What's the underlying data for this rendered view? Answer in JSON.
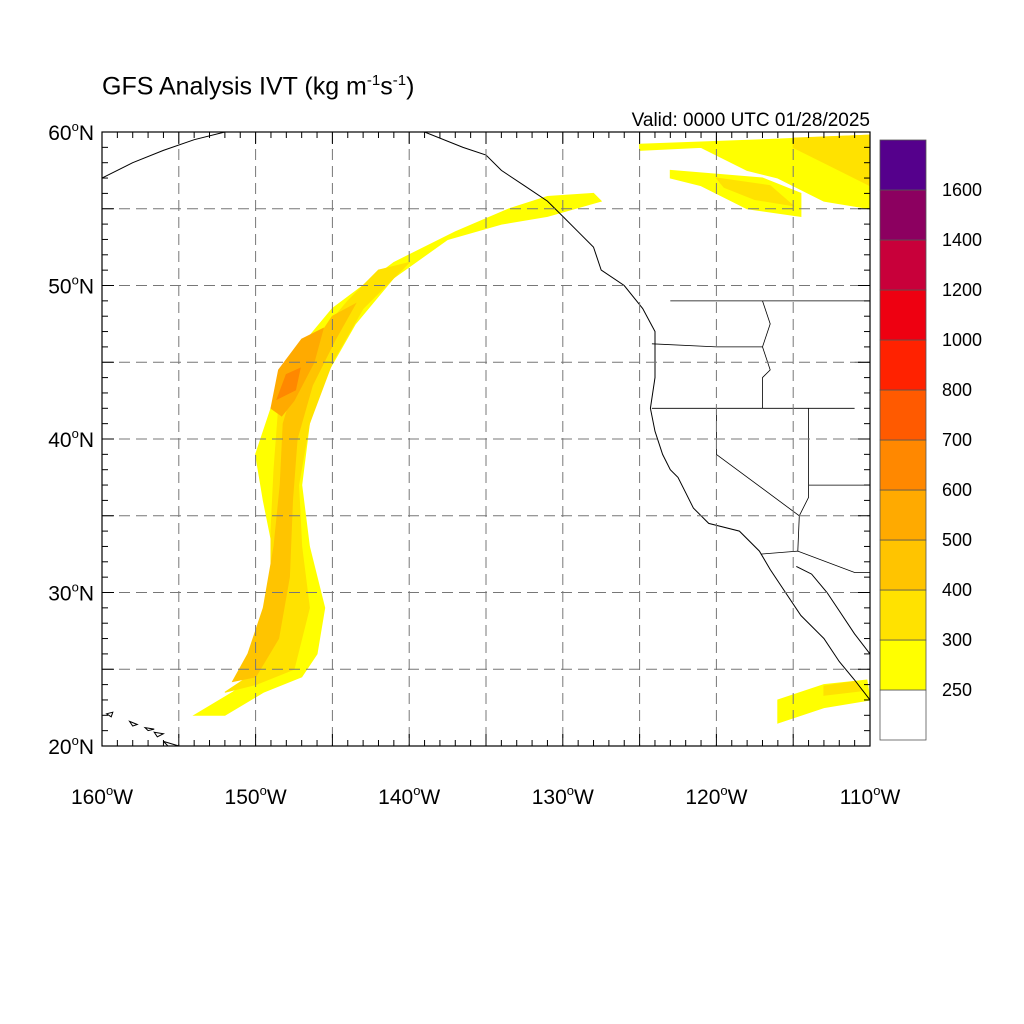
{
  "title": {
    "main": "GFS Analysis IVT (kg m",
    "exp1": "-1",
    "mid": "s",
    "exp2": "-1",
    "end": ")"
  },
  "valid": "Valid: 0000 UTC 01/28/2025",
  "map": {
    "lon_range": [
      -160,
      -110
    ],
    "lat_range": [
      20,
      60
    ],
    "grid": true,
    "lon_ticks": [
      {
        "lon": -160,
        "label": "160",
        "hem": "W"
      },
      {
        "lon": -150,
        "label": "150",
        "hem": "W"
      },
      {
        "lon": -140,
        "label": "140",
        "hem": "W"
      },
      {
        "lon": -130,
        "label": "130",
        "hem": "W"
      },
      {
        "lon": -120,
        "label": "120",
        "hem": "W"
      },
      {
        "lon": -110,
        "label": "110",
        "hem": "W"
      }
    ],
    "lat_ticks": [
      {
        "lat": 60,
        "label": "60",
        "hem": "N"
      },
      {
        "lat": 50,
        "label": "50",
        "hem": "N"
      },
      {
        "lat": 40,
        "label": "40",
        "hem": "N"
      },
      {
        "lat": 30,
        "label": "30",
        "hem": "N"
      },
      {
        "lat": 20,
        "label": "20",
        "hem": "N"
      }
    ]
  },
  "colorbar": {
    "colors": [
      "#ffffff",
      "#ffff00",
      "#ffe200",
      "#ffc400",
      "#ffaa00",
      "#ff8800",
      "#ff5a00",
      "#ff2200",
      "#ee0011",
      "#c8003a",
      "#8c0060",
      "#55008c"
    ],
    "labels": [
      "250",
      "300",
      "400",
      "500",
      "600",
      "700",
      "800",
      "1000",
      "1200",
      "1400",
      "1600"
    ]
  },
  "ivt_features": [
    {
      "name": "atmospheric-river",
      "color": "#ffff00",
      "lonlat": [
        [
          -154,
          22
        ],
        [
          -151.5,
          23.5
        ],
        [
          -150,
          24.5
        ],
        [
          -149,
          27
        ],
        [
          -148.5,
          30
        ],
        [
          -149,
          33.5
        ],
        [
          -149.5,
          36
        ],
        [
          -150,
          39
        ],
        [
          -149,
          42
        ],
        [
          -147.5,
          45.5
        ],
        [
          -145,
          48.5
        ],
        [
          -141,
          51.5
        ],
        [
          -137,
          53.5
        ],
        [
          -133.5,
          55
        ],
        [
          -131,
          55.8
        ],
        [
          -128,
          56
        ],
        [
          -127.5,
          55.5
        ],
        [
          -131,
          54.5
        ],
        [
          -134,
          54
        ],
        [
          -137.5,
          53
        ],
        [
          -141,
          50.5
        ],
        [
          -143.5,
          47.5
        ],
        [
          -145.5,
          44
        ],
        [
          -146.5,
          41
        ],
        [
          -147,
          37
        ],
        [
          -146.5,
          33
        ],
        [
          -145.5,
          29
        ],
        [
          -146,
          26
        ],
        [
          -147,
          24.5
        ],
        [
          -149.5,
          23.5
        ],
        [
          -152,
          22
        ]
      ]
    },
    {
      "name": "atmospheric-river-core",
      "color": "#ffe200",
      "lonlat": [
        [
          -152,
          23.5
        ],
        [
          -150.5,
          24.5
        ],
        [
          -149.5,
          28
        ],
        [
          -149,
          31
        ],
        [
          -149,
          34
        ],
        [
          -148.8,
          38
        ],
        [
          -148.5,
          42
        ],
        [
          -146.5,
          46
        ],
        [
          -144,
          49
        ],
        [
          -142,
          51
        ],
        [
          -140,
          51.5
        ],
        [
          -143,
          48.5
        ],
        [
          -145,
          45
        ],
        [
          -146.5,
          41
        ],
        [
          -147.2,
          37
        ],
        [
          -147,
          33
        ],
        [
          -146.5,
          29
        ],
        [
          -147.5,
          25
        ],
        [
          -150,
          24
        ]
      ]
    },
    {
      "name": "atmospheric-river-max",
      "color": "#ffc400",
      "lonlat": [
        [
          -151.5,
          24.2
        ],
        [
          -150.5,
          26
        ],
        [
          -149.5,
          29
        ],
        [
          -148.8,
          33
        ],
        [
          -148.4,
          37
        ],
        [
          -148.2,
          41
        ],
        [
          -147,
          45
        ],
        [
          -145,
          48
        ],
        [
          -143.5,
          48.8
        ],
        [
          -144.8,
          46.5
        ],
        [
          -146.3,
          43.5
        ],
        [
          -147.3,
          40
        ],
        [
          -147.6,
          36
        ],
        [
          -147.8,
          31
        ],
        [
          -148.5,
          27
        ],
        [
          -150,
          24.5
        ]
      ]
    },
    {
      "name": "atmospheric-river-peak",
      "color": "#ffaa00",
      "lonlat": [
        [
          -149,
          42
        ],
        [
          -148.5,
          44.5
        ],
        [
          -147,
          46.5
        ],
        [
          -145.6,
          47.2
        ],
        [
          -146.2,
          45
        ],
        [
          -147.5,
          42.5
        ],
        [
          -148.3,
          41.5
        ]
      ]
    },
    {
      "name": "atmospheric-river-center",
      "color": "#ff8800",
      "lonlat": [
        [
          -148.6,
          42.6
        ],
        [
          -148,
          44.2
        ],
        [
          -147.1,
          44.6
        ],
        [
          -147.4,
          43.2
        ]
      ]
    },
    {
      "name": "arctic-ivt",
      "color": "#ffff00",
      "lonlat": [
        [
          -125,
          59.2
        ],
        [
          -117,
          59.5
        ],
        [
          -110,
          59.8
        ],
        [
          -110,
          55
        ],
        [
          -113,
          55.5
        ],
        [
          -116,
          57
        ],
        [
          -118,
          57.5
        ],
        [
          -121,
          59
        ],
        [
          -125,
          58.8
        ]
      ]
    },
    {
      "name": "arctic-ivt-core",
      "color": "#ffe200",
      "lonlat": [
        [
          -115,
          59.6
        ],
        [
          -110,
          59.8
        ],
        [
          -110,
          56.5
        ],
        [
          -113,
          58
        ],
        [
          -115,
          59
        ]
      ]
    },
    {
      "name": "arctic-ivt-south",
      "color": "#ffff00",
      "lonlat": [
        [
          -123,
          57.5
        ],
        [
          -117,
          57
        ],
        [
          -114.5,
          56
        ],
        [
          -114.5,
          54.5
        ],
        [
          -118,
          55
        ],
        [
          -121,
          56.5
        ],
        [
          -123,
          57
        ]
      ]
    },
    {
      "name": "arctic-ivt-south-core",
      "color": "#ffe200",
      "lonlat": [
        [
          -120,
          57
        ],
        [
          -116.5,
          56.5
        ],
        [
          -115,
          55.2
        ],
        [
          -117.5,
          55.6
        ],
        [
          -119.5,
          56.4
        ]
      ]
    },
    {
      "name": "subtropical-ivt",
      "color": "#ffff00",
      "lonlat": [
        [
          -116,
          21.5
        ],
        [
          -113,
          22.5
        ],
        [
          -110,
          23
        ],
        [
          -110.2,
          24.3
        ],
        [
          -113,
          24
        ],
        [
          -116,
          23
        ]
      ]
    },
    {
      "name": "subtropical-ivt-core",
      "color": "#ffe200",
      "lonlat": [
        [
          -113,
          23.3
        ],
        [
          -110.5,
          23.6
        ],
        [
          -111,
          24.2
        ],
        [
          -113,
          23.9
        ]
      ]
    }
  ],
  "geography": {
    "coastline_na": [
      [
        -139,
        60
      ],
      [
        -136.5,
        59
      ],
      [
        -135,
        58.5
      ],
      [
        -134,
        57.5
      ],
      [
        -132.5,
        56.5
      ],
      [
        -131,
        55.5
      ],
      [
        -130,
        54.5
      ],
      [
        -129,
        53.5
      ],
      [
        -128,
        52.5
      ],
      [
        -127.5,
        51
      ],
      [
        -126,
        50
      ],
      [
        -124.8,
        48.5
      ],
      [
        -124,
        47
      ],
      [
        -124,
        46
      ],
      [
        -124,
        44
      ],
      [
        -124.3,
        42
      ],
      [
        -124,
        40.5
      ],
      [
        -123.5,
        39
      ],
      [
        -123,
        38
      ],
      [
        -122.5,
        37.5
      ],
      [
        -122,
        36.5
      ],
      [
        -121.5,
        35.5
      ],
      [
        -120.5,
        34.5
      ],
      [
        -118.5,
        34
      ],
      [
        -117.2,
        32.7
      ],
      [
        -116.5,
        31.5
      ],
      [
        -115.5,
        30
      ],
      [
        -114.5,
        28.5
      ],
      [
        -113,
        27
      ],
      [
        -112,
        25.5
      ],
      [
        -111,
        24.3
      ],
      [
        -110,
        23
      ]
    ],
    "coastline_gulf": [
      [
        -114.8,
        31.7
      ],
      [
        -113.8,
        31.2
      ],
      [
        -112.8,
        30
      ],
      [
        -112,
        28.8
      ],
      [
        -111,
        27.3
      ],
      [
        -110,
        26
      ]
    ],
    "us_canada_border": [
      [
        -123,
        49
      ],
      [
        -110,
        49
      ]
    ],
    "us_mexico_border": [
      [
        -117.1,
        32.5
      ],
      [
        -114.7,
        32.7
      ],
      [
        -111,
        31.3
      ],
      [
        -110,
        31.3
      ]
    ],
    "state_lines": [
      [
        [
          -124.2,
          46.2
        ],
        [
          -120,
          46
        ],
        [
          -117,
          46
        ]
      ],
      [
        [
          -124.2,
          42
        ],
        [
          -117,
          42
        ],
        [
          -114,
          42
        ],
        [
          -111,
          42
        ]
      ],
      [
        [
          -117,
          49
        ],
        [
          -116.5,
          47.5
        ],
        [
          -117,
          46
        ],
        [
          -116.5,
          44.5
        ],
        [
          -117,
          44
        ],
        [
          -117,
          42
        ]
      ],
      [
        [
          -120,
          42
        ],
        [
          -120,
          39
        ],
        [
          -114.6,
          35
        ],
        [
          -114.7,
          32.7
        ]
      ],
      [
        [
          -114,
          42
        ],
        [
          -114,
          36.2
        ],
        [
          -114.6,
          35
        ]
      ],
      [
        [
          -111,
          45
        ],
        [
          -110,
          45
        ]
      ],
      [
        [
          -114,
          37
        ],
        [
          -110,
          37
        ]
      ]
    ],
    "alaska": [
      [
        -160,
        57
      ],
      [
        -158,
        58
      ],
      [
        -156,
        58.8
      ],
      [
        -154,
        59.5
      ],
      [
        -152,
        60
      ]
    ],
    "hawaii": [
      [
        [
          -159.7,
          22.1
        ],
        [
          -159.3,
          22.2
        ],
        [
          -159.4,
          21.9
        ]
      ],
      [
        [
          -158.2,
          21.6
        ],
        [
          -157.7,
          21.4
        ],
        [
          -158,
          21.3
        ]
      ],
      [
        [
          -157.2,
          21.2
        ],
        [
          -156.6,
          21.1
        ],
        [
          -157,
          21
        ]
      ],
      [
        [
          -156.6,
          20.9
        ],
        [
          -156,
          20.8
        ],
        [
          -156.4,
          20.6
        ]
      ],
      [
        [
          -156,
          20.3
        ],
        [
          -155,
          20
        ],
        [
          -155.5,
          19.8
        ]
      ]
    ]
  }
}
